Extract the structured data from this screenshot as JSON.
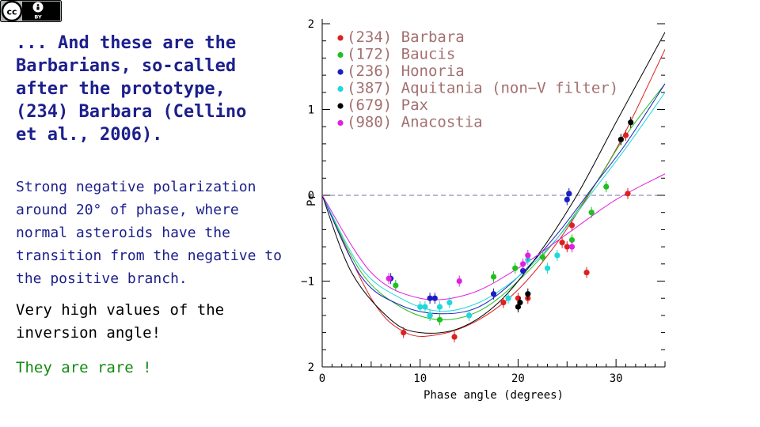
{
  "license_badge": {
    "cc": "cc",
    "by": "BY"
  },
  "text": {
    "p1": "... And these are the Barbarians, so-called after the prototype, (234) Barbara (Cellino et al., 2006).",
    "p2": "Strong negative polarization around 20° of phase, where normal asteroids have the transition from the negative to the positive branch.",
    "p3": "Very high values of the inversion angle!",
    "p4": "They are rare !"
  },
  "colors": {
    "p1": "#1c1f8c",
    "p2": "#1c1f8c",
    "p3": "#000000",
    "p4": "#138a13"
  },
  "chart_data": {
    "type": "scatter",
    "xlabel": "Phase angle (degrees)",
    "ylabel": "Pr",
    "xlim": [
      0,
      35
    ],
    "ylim": [
      -2,
      2
    ],
    "x_ticks": [
      0,
      10,
      20,
      30
    ],
    "y_ticks": [
      2,
      1,
      0,
      -1,
      2
    ],
    "y_tick_labels": [
      "2",
      "1",
      "0",
      "−1",
      "2"
    ],
    "zero_line": "dashed",
    "series": [
      {
        "name": "(234) Barbara",
        "color": "#dd2020",
        "points": [
          [
            8.3,
            -1.6
          ],
          [
            13.5,
            -1.65
          ],
          [
            18.5,
            -1.25
          ],
          [
            20,
            -1.2
          ],
          [
            21,
            -1.2
          ],
          [
            24.5,
            -0.55
          ],
          [
            25,
            -0.6
          ],
          [
            25.5,
            -0.35
          ],
          [
            27,
            -0.9
          ],
          [
            31,
            0.7
          ],
          [
            31.2,
            0.02
          ]
        ],
        "fit": [
          [
            0,
            0
          ],
          [
            5,
            -1.2
          ],
          [
            8.5,
            -1.6
          ],
          [
            12,
            -1.62
          ],
          [
            16,
            -1.45
          ],
          [
            20,
            -1.1
          ],
          [
            24,
            -0.55
          ],
          [
            28,
            0.15
          ],
          [
            31,
            0.75
          ],
          [
            35,
            1.7
          ]
        ]
      },
      {
        "name": "(172) Baucis",
        "color": "#20c020",
        "points": [
          [
            7.5,
            -1.05
          ],
          [
            11,
            -1.4
          ],
          [
            12,
            -1.45
          ],
          [
            17.5,
            -0.95
          ],
          [
            19.7,
            -0.85
          ],
          [
            22.5,
            -0.72
          ],
          [
            25.5,
            -0.52
          ],
          [
            27.5,
            -0.2
          ],
          [
            29,
            0.1
          ]
        ],
        "fit": [
          [
            0,
            0
          ],
          [
            4,
            -0.9
          ],
          [
            8,
            -1.3
          ],
          [
            12,
            -1.45
          ],
          [
            16,
            -1.35
          ],
          [
            20,
            -1
          ],
          [
            24,
            -0.5
          ],
          [
            28,
            0.15
          ],
          [
            31,
            0.7
          ],
          [
            35,
            1.3
          ]
        ]
      },
      {
        "name": "(236) Honoria",
        "color": "#1c1fc0",
        "points": [
          [
            7,
            -0.97
          ],
          [
            11,
            -1.2
          ],
          [
            11.5,
            -1.2
          ],
          [
            17.5,
            -1.15
          ],
          [
            20.5,
            -0.88
          ],
          [
            25,
            -0.05
          ],
          [
            25.2,
            0.02
          ]
        ],
        "fit": [
          [
            0,
            0
          ],
          [
            4,
            -0.95
          ],
          [
            8,
            -1.28
          ],
          [
            12,
            -1.38
          ],
          [
            16,
            -1.3
          ],
          [
            20,
            -0.95
          ],
          [
            24,
            -0.45
          ],
          [
            28,
            0.15
          ],
          [
            31,
            0.6
          ],
          [
            35,
            1.3
          ]
        ]
      },
      {
        "name": "(387) Aquitania (non−V filter)",
        "color": "#20d8d8",
        "points": [
          [
            10,
            -1.3
          ],
          [
            10.5,
            -1.3
          ],
          [
            11,
            -1.4
          ],
          [
            12,
            -1.3
          ],
          [
            13,
            -1.25
          ],
          [
            15,
            -1.4
          ],
          [
            19,
            -1.2
          ],
          [
            21,
            -0.75
          ],
          [
            23,
            -0.85
          ],
          [
            24,
            -0.7
          ]
        ],
        "fit": [
          [
            0,
            0
          ],
          [
            4,
            -0.85
          ],
          [
            8,
            -1.2
          ],
          [
            12,
            -1.35
          ],
          [
            16,
            -1.25
          ],
          [
            20,
            -0.95
          ],
          [
            24,
            -0.5
          ],
          [
            28,
            0.1
          ],
          [
            31,
            0.55
          ],
          [
            35,
            1.2
          ]
        ]
      },
      {
        "name": "(679) Pax",
        "color": "#000000",
        "points": [
          [
            20,
            -1.3
          ],
          [
            20.2,
            -1.25
          ],
          [
            21,
            -1.15
          ],
          [
            30.5,
            0.65
          ],
          [
            31.5,
            0.85
          ]
        ],
        "fit": [
          [
            0,
            0
          ],
          [
            3,
            -0.9
          ],
          [
            7,
            -1.45
          ],
          [
            10,
            -1.6
          ],
          [
            14,
            -1.55
          ],
          [
            18,
            -1.25
          ],
          [
            22,
            -0.7
          ],
          [
            26,
            0
          ],
          [
            30,
            0.85
          ],
          [
            35,
            1.9
          ]
        ]
      },
      {
        "name": "(980) Anacostia",
        "color": "#e020e0",
        "points": [
          [
            6.8,
            -0.97
          ],
          [
            14,
            -1
          ],
          [
            20.5,
            -0.8
          ],
          [
            21,
            -0.7
          ],
          [
            25.5,
            -0.6
          ]
        ],
        "fit": [
          [
            0,
            0
          ],
          [
            5,
            -0.9
          ],
          [
            10,
            -1.2
          ],
          [
            15,
            -1.15
          ],
          [
            20,
            -0.85
          ],
          [
            25,
            -0.45
          ],
          [
            30,
            -0.05
          ],
          [
            35,
            0.25
          ]
        ]
      }
    ]
  }
}
